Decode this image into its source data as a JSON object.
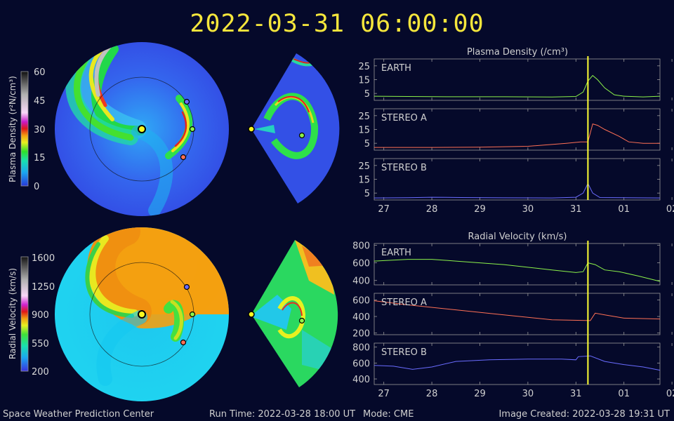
{
  "header": {
    "timestamp": "2022-03-31  06:00:00"
  },
  "colors": {
    "background": "#05092a",
    "title": "#f5e63c",
    "earth": "#8cf24a",
    "stereo_a": "#ff7055",
    "stereo_b": "#6a6cff",
    "marker": "#ffff33"
  },
  "panels": {
    "density_colorbar": {
      "label": "Plasma Density (r²N/cm³)",
      "ticks": [
        "60",
        "45",
        "30",
        "15",
        "0"
      ]
    },
    "velocity_colorbar": {
      "label": "Radial Velocity (km/s)",
      "ticks": [
        "1600",
        "1250",
        "900",
        "550",
        "200"
      ]
    }
  },
  "footer": {
    "left": "Space Weather Prediction Center",
    "run_time": "Run Time: 2022-03-28 18:00 UT",
    "mode": "Mode: CME",
    "created": "Image Created: 2022-03-28 19:31 UT"
  },
  "chart_data": [
    {
      "type": "line",
      "title": "Plasma Density (/cm³)",
      "x_ticks": [
        "27",
        "28",
        "29",
        "30",
        "31",
        "01",
        "02"
      ],
      "x_range_days": [
        26.8,
        32.75
      ],
      "current_time_day": 31.25,
      "series": [
        {
          "name": "EARTH",
          "y_ticks": [
            "25",
            "15",
            "5"
          ],
          "ylim": [
            0,
            30
          ],
          "points": [
            [
              26.8,
              3
            ],
            [
              27.5,
              2.8
            ],
            [
              28.5,
              2.6
            ],
            [
              29.5,
              2.6
            ],
            [
              30.5,
              2.4
            ],
            [
              31.0,
              2.8
            ],
            [
              31.15,
              6
            ],
            [
              31.25,
              14
            ],
            [
              31.35,
              18
            ],
            [
              31.45,
              15
            ],
            [
              31.6,
              9
            ],
            [
              31.8,
              4
            ],
            [
              32.0,
              3
            ],
            [
              32.4,
              2.5
            ],
            [
              32.75,
              3
            ]
          ]
        },
        {
          "name": "STEREO A",
          "y_ticks": [
            "25",
            "15",
            "5"
          ],
          "ylim": [
            0,
            30
          ],
          "points": [
            [
              26.8,
              2
            ],
            [
              28,
              2
            ],
            [
              29,
              2.2
            ],
            [
              30,
              2.8
            ],
            [
              30.8,
              5
            ],
            [
              31.1,
              6
            ],
            [
              31.25,
              6
            ],
            [
              31.35,
              19
            ],
            [
              31.45,
              18
            ],
            [
              31.6,
              15
            ],
            [
              31.9,
              10
            ],
            [
              32.1,
              6
            ],
            [
              32.4,
              5
            ],
            [
              32.75,
              5
            ]
          ]
        },
        {
          "name": "STEREO B",
          "y_ticks": [
            "25",
            "15",
            "5"
          ],
          "ylim": [
            0,
            30
          ],
          "points": [
            [
              26.8,
              1.5
            ],
            [
              27.5,
              1.7
            ],
            [
              28,
              2
            ],
            [
              28.6,
              1.8
            ],
            [
              29.5,
              1.6
            ],
            [
              30.5,
              1.5
            ],
            [
              31.0,
              2
            ],
            [
              31.15,
              5
            ],
            [
              31.25,
              12
            ],
            [
              31.35,
              5
            ],
            [
              31.5,
              1.8
            ],
            [
              32.75,
              1.5
            ]
          ]
        }
      ]
    },
    {
      "type": "line",
      "title": "Radial Velocity (km/s)",
      "x_ticks": [
        "27",
        "28",
        "29",
        "30",
        "31",
        "01",
        "02"
      ],
      "x_range_days": [
        26.8,
        32.75
      ],
      "current_time_day": 31.25,
      "series": [
        {
          "name": "EARTH",
          "y_ticks": [
            "800",
            "600",
            "400"
          ],
          "ylim": [
            350,
            820
          ],
          "points": [
            [
              26.8,
              620
            ],
            [
              27.5,
              640
            ],
            [
              28,
              640
            ],
            [
              28.5,
              620
            ],
            [
              29.5,
              580
            ],
            [
              30.5,
              520
            ],
            [
              31.0,
              490
            ],
            [
              31.15,
              500
            ],
            [
              31.25,
              600
            ],
            [
              31.4,
              580
            ],
            [
              31.6,
              520
            ],
            [
              31.9,
              500
            ],
            [
              32.3,
              450
            ],
            [
              32.75,
              390
            ]
          ]
        },
        {
          "name": "STEREO A",
          "y_ticks": [
            "600",
            "400",
            "200"
          ],
          "ylim": [
            180,
            680
          ],
          "points": [
            [
              26.8,
              590
            ],
            [
              27.5,
              540
            ],
            [
              28.5,
              480
            ],
            [
              29.5,
              420
            ],
            [
              30.5,
              360
            ],
            [
              31.3,
              350
            ],
            [
              31.4,
              440
            ],
            [
              31.6,
              420
            ],
            [
              32.0,
              380
            ],
            [
              32.75,
              370
            ]
          ]
        },
        {
          "name": "STEREO B",
          "y_ticks": [
            "800",
            "600",
            "400"
          ],
          "ylim": [
            330,
            850
          ],
          "points": [
            [
              26.8,
              570
            ],
            [
              27.2,
              560
            ],
            [
              27.6,
              520
            ],
            [
              28.0,
              550
            ],
            [
              28.5,
              620
            ],
            [
              29.2,
              640
            ],
            [
              30.0,
              650
            ],
            [
              30.7,
              650
            ],
            [
              31.0,
              640
            ],
            [
              31.05,
              680
            ],
            [
              31.3,
              690
            ],
            [
              31.6,
              620
            ],
            [
              32.0,
              580
            ],
            [
              32.4,
              550
            ],
            [
              32.75,
              510
            ]
          ]
        }
      ]
    }
  ]
}
